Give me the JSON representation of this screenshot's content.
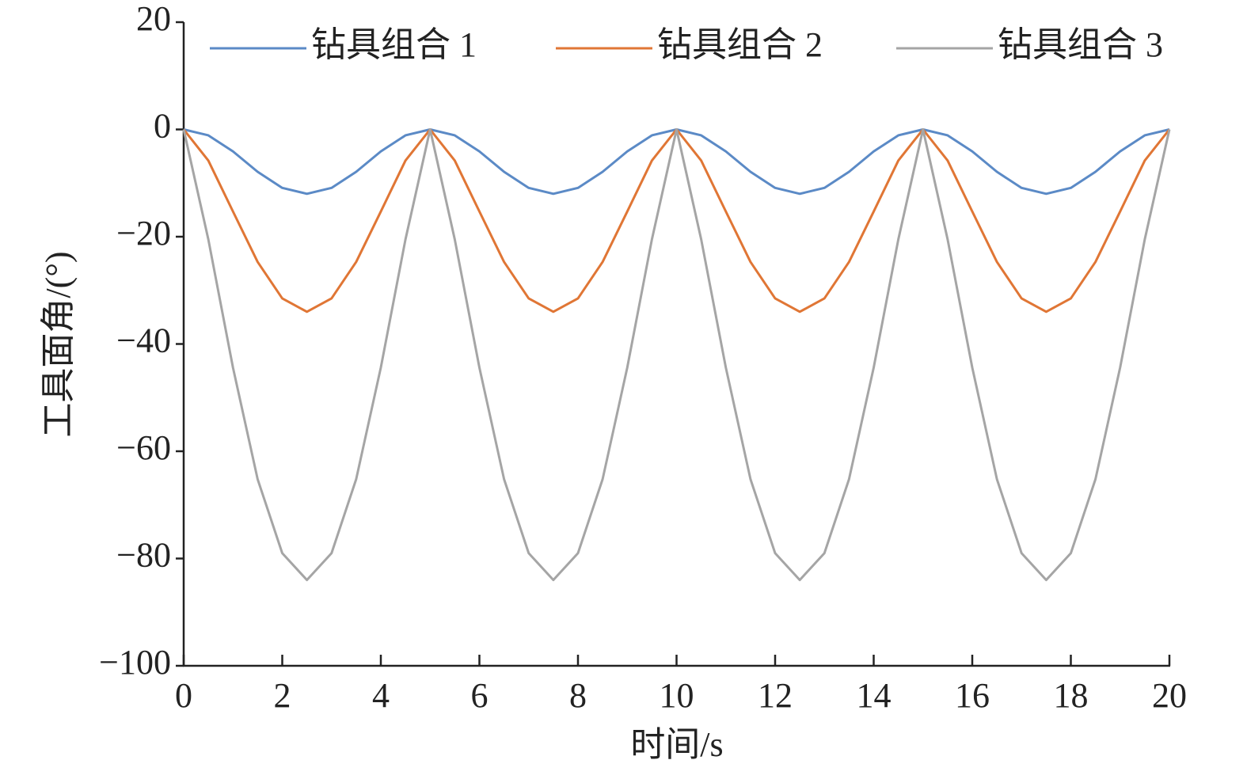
{
  "chart_data": {
    "type": "line",
    "x_label": "时间/s",
    "y_label": "工具面角/(°)",
    "x": [
      0,
      0.5,
      1,
      1.5,
      2,
      2.5,
      3,
      3.5,
      4,
      4.5,
      5,
      5.5,
      6,
      6.5,
      7,
      7.5,
      8,
      8.5,
      9,
      9.5,
      10,
      10.5,
      11,
      11.5,
      12,
      12.5,
      13,
      13.5,
      14,
      14.5,
      15,
      15.5,
      16,
      16.5,
      17,
      17.5,
      18,
      18.5,
      19,
      19.5,
      20
    ],
    "series": [
      {
        "name": "钻具组合 1",
        "color": "#5b8ac6",
        "values": [
          0,
          -1.1,
          -4.1,
          -7.9,
          -10.9,
          -12,
          -10.9,
          -7.9,
          -4.1,
          -1.1,
          0,
          -1.1,
          -4.1,
          -7.9,
          -10.9,
          -12,
          -10.9,
          -7.9,
          -4.1,
          -1.1,
          0,
          -1.1,
          -4.1,
          -7.9,
          -10.9,
          -12,
          -10.9,
          -7.9,
          -4.1,
          -1.1,
          0,
          -1.1,
          -4.1,
          -7.9,
          -10.9,
          -12,
          -10.9,
          -7.9,
          -4.1,
          -1.1,
          0
        ]
      },
      {
        "name": "钻具组合 2",
        "color": "#e07635",
        "values": [
          0,
          -5.8,
          -15.3,
          -24.7,
          -31.5,
          -34,
          -31.5,
          -24.7,
          -15.3,
          -5.8,
          0,
          -5.8,
          -15.3,
          -24.7,
          -31.5,
          -34,
          -31.5,
          -24.7,
          -15.3,
          -5.8,
          0,
          -5.8,
          -15.3,
          -24.7,
          -31.5,
          -34,
          -31.5,
          -24.7,
          -15.3,
          -5.8,
          0,
          -5.8,
          -15.3,
          -24.7,
          -31.5,
          -34,
          -31.5,
          -24.7,
          -15.3,
          -5.8,
          0
        ]
      },
      {
        "name": "钻具组合 3",
        "color": "#a5a5a5",
        "values": [
          0,
          -20.5,
          -44.4,
          -65.2,
          -79,
          -84,
          -79,
          -65.2,
          -44.4,
          -20.5,
          0,
          -20.5,
          -44.4,
          -65.2,
          -79,
          -84,
          -79,
          -65.2,
          -44.4,
          -20.5,
          0,
          -20.5,
          -44.4,
          -65.2,
          -79,
          -84,
          -79,
          -65.2,
          -44.4,
          -20.5,
          0,
          -20.5,
          -44.4,
          -65.2,
          -79,
          -84,
          -79,
          -65.2,
          -44.4,
          -20.5,
          0
        ]
      }
    ],
    "xlim": [
      0,
      20
    ],
    "xticks": [
      0,
      2,
      4,
      6,
      8,
      10,
      12,
      14,
      16,
      18,
      20
    ],
    "ylim": [
      -100,
      20
    ],
    "yticks": [
      20,
      0,
      {
        "value": -20,
        "label": "−20"
      },
      {
        "value": -40,
        "label": "−40"
      },
      {
        "value": -60,
        "label": "−60"
      },
      {
        "value": -80,
        "label": "−80"
      },
      {
        "value": -100,
        "label": "−100"
      }
    ],
    "legend": "top"
  }
}
